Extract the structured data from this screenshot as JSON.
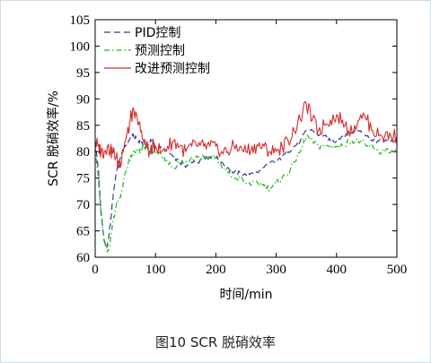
{
  "caption": "图10 SCR 脱硝效率",
  "chart_data": {
    "type": "line",
    "xlabel": "时间/min",
    "ylabel": "SCR 脱硝效率/%",
    "xlim": [
      0,
      500
    ],
    "ylim": [
      60,
      105
    ],
    "xticks": [
      0,
      100,
      200,
      300,
      400,
      500
    ],
    "yticks": [
      60,
      65,
      70,
      75,
      80,
      85,
      90,
      95,
      100,
      105
    ],
    "grid": false,
    "legend_position": "top-left",
    "series": [
      {
        "name": "PID控制",
        "color": "#3b3b8a",
        "style": "dashed",
        "x": [
          0,
          5,
          10,
          15,
          20,
          25,
          30,
          35,
          40,
          45,
          50,
          55,
          60,
          65,
          70,
          75,
          80,
          85,
          90,
          95,
          100,
          110,
          120,
          130,
          140,
          150,
          160,
          170,
          180,
          190,
          200,
          210,
          220,
          230,
          240,
          250,
          260,
          270,
          280,
          290,
          300,
          310,
          320,
          330,
          340,
          350,
          360,
          370,
          380,
          390,
          400,
          410,
          420,
          430,
          440,
          450,
          460,
          470,
          480,
          490,
          500
        ],
        "values": [
          82,
          77,
          68,
          63,
          62,
          66,
          72,
          76,
          78,
          80,
          81,
          82,
          83,
          83,
          82,
          82,
          81,
          81,
          82,
          82,
          81,
          81,
          80,
          79,
          78,
          77,
          78,
          78,
          79,
          79,
          79,
          78,
          77,
          76,
          76,
          75.5,
          76,
          76,
          77,
          78,
          78,
          79,
          80,
          81,
          82,
          84,
          84,
          83,
          83,
          82,
          82,
          83,
          83,
          84,
          84,
          83,
          82,
          82,
          82,
          82,
          82
        ]
      },
      {
        "name": "预测控制",
        "color": "#22b722",
        "style": "dash-dot",
        "x": [
          0,
          5,
          10,
          15,
          20,
          25,
          30,
          35,
          40,
          45,
          50,
          55,
          60,
          65,
          70,
          75,
          80,
          85,
          90,
          95,
          100,
          110,
          120,
          130,
          140,
          150,
          160,
          170,
          180,
          190,
          200,
          210,
          220,
          230,
          240,
          250,
          260,
          270,
          280,
          290,
          300,
          310,
          320,
          330,
          340,
          350,
          360,
          370,
          380,
          390,
          400,
          410,
          420,
          430,
          440,
          450,
          460,
          470,
          480,
          490,
          500
        ],
        "values": [
          81,
          75,
          68,
          63,
          61,
          63,
          67,
          70,
          71,
          73,
          76,
          78,
          79,
          80,
          80,
          80,
          81,
          81,
          80,
          80,
          80,
          79,
          78,
          77,
          78,
          78,
          79,
          79,
          79,
          79,
          79,
          77,
          76,
          75,
          75,
          74,
          74,
          74,
          73.5,
          73,
          74,
          75,
          76,
          78,
          80,
          83,
          82,
          81,
          81,
          81,
          81,
          81,
          82,
          82,
          82,
          81,
          81,
          80,
          80,
          80,
          80
        ]
      },
      {
        "name": "改进预测控制",
        "color": "#d42a2a",
        "style": "solid",
        "x": [
          0,
          5,
          10,
          15,
          20,
          25,
          30,
          35,
          40,
          45,
          50,
          55,
          60,
          65,
          70,
          75,
          80,
          85,
          90,
          95,
          100,
          110,
          120,
          130,
          140,
          150,
          160,
          170,
          180,
          190,
          200,
          210,
          220,
          230,
          240,
          250,
          260,
          270,
          280,
          290,
          300,
          310,
          320,
          330,
          340,
          350,
          360,
          370,
          380,
          390,
          400,
          410,
          420,
          430,
          440,
          450,
          460,
          470,
          480,
          490,
          500
        ],
        "values": [
          82,
          81,
          80,
          80,
          81,
          80,
          80,
          79,
          77,
          80,
          82,
          84,
          87,
          87,
          86,
          84,
          82,
          81,
          80,
          81,
          81,
          80,
          81,
          82,
          81,
          80,
          81,
          81,
          81,
          81,
          81,
          80,
          80,
          81,
          81,
          80,
          81,
          81,
          81,
          80,
          80,
          81,
          82,
          84,
          86,
          89,
          86,
          84,
          85,
          86,
          87,
          86,
          84,
          85,
          87,
          86,
          84,
          83,
          83,
          83,
          83
        ]
      }
    ]
  }
}
